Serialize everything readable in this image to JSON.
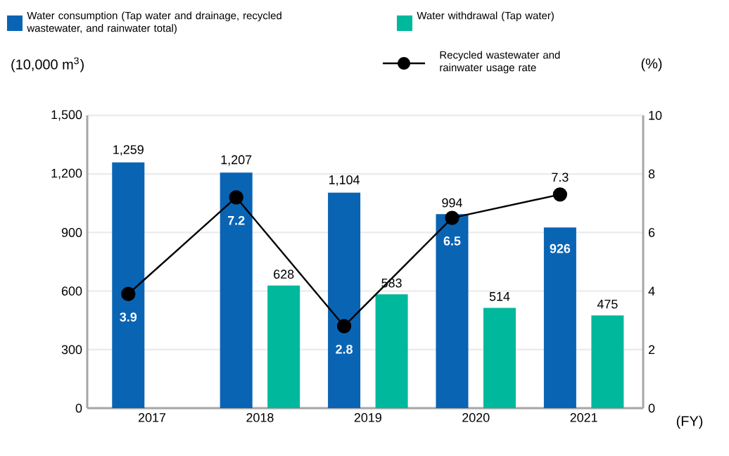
{
  "chart_data": {
    "type": "bar",
    "categories": [
      "2017",
      "2018",
      "2019",
      "2020",
      "2021"
    ],
    "xlabel": "(FY)",
    "ylabel": "(10,000 m$^{3}$)",
    "y2label": "(%)",
    "ylim": [
      0,
      1500
    ],
    "yticks": [
      0,
      300,
      600,
      900,
      {
        "value": 1200,
        "label": "1,200"
      },
      {
        "value": 1500,
        "label": "1,500"
      }
    ],
    "y2lim": [
      0,
      10
    ],
    "y2ticks": [
      0,
      2,
      4,
      6,
      8,
      10
    ],
    "grid": "y",
    "legend": "top",
    "series": [
      {
        "name": "Water consumption (Tap water and drainage, recycled wastewater, and rainwater total)",
        "color": "#0a64b4",
        "values": [
          1259,
          1207,
          1104,
          994,
          926
        ],
        "value_labels": [
          "1,259",
          "1,207",
          "1,104",
          "994",
          "926"
        ]
      },
      {
        "name": "Water withdrawal (Tap water)",
        "color": "#00b89c",
        "values": [
          null,
          628,
          583,
          514,
          475
        ],
        "value_labels": [
          null,
          "628",
          "583",
          "514",
          "475"
        ]
      },
      {
        "name": "Recycled wastewater and rainwater usage rate",
        "type": "line",
        "axis": "y2",
        "marker": "circle",
        "line_style": "solid",
        "color": "#000000",
        "values": [
          3.9,
          7.2,
          2.8,
          6.5,
          7.3
        ],
        "value_labels": [
          "3.9",
          "7.2",
          "2.8",
          "6.5",
          "7.3"
        ]
      }
    ]
  }
}
